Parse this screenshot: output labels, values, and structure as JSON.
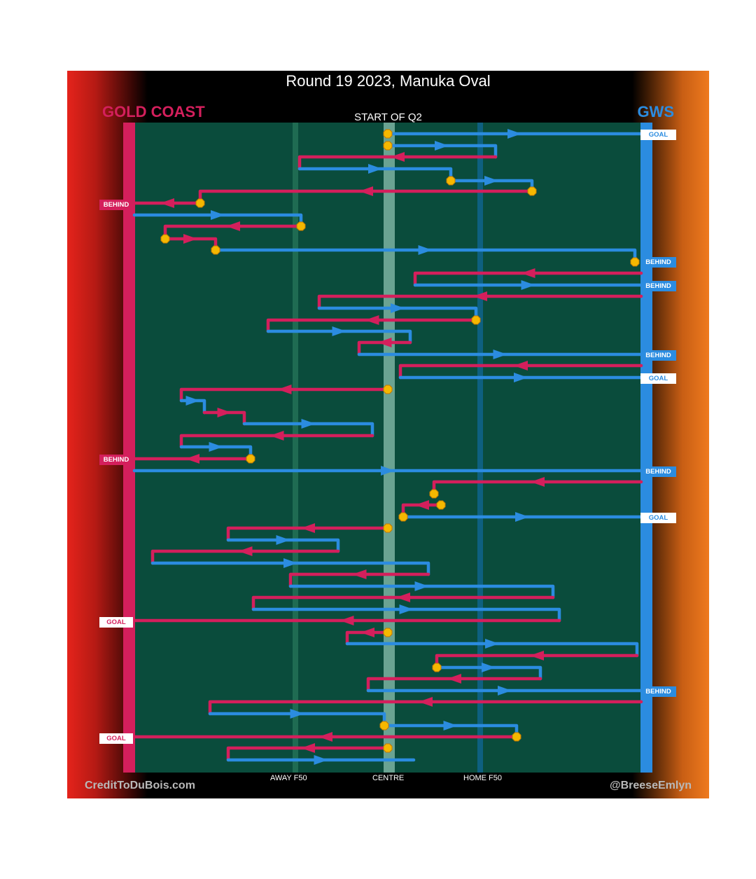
{
  "title": "Round 19 2023, Manuka Oval",
  "quarter": "START OF Q2",
  "teams": {
    "left": "GOLD COAST",
    "right": "GWS"
  },
  "axis_labels": {
    "away": "AWAY F50",
    "centre": "CENTRE",
    "home": "HOME F50"
  },
  "credits": {
    "left": "CreditToDuBois.com",
    "right": "@BreeseEmlyn"
  },
  "colors": {
    "gold_coast": "#d41f5c",
    "gws": "#2b8ce0",
    "field": "#0a4c3c",
    "stoppage_marker": "#f5b800"
  },
  "outcome_labels": [
    "GOAL",
    "BEHIND",
    "BEHIND",
    "BEHIND",
    "BEHIND",
    "GOAL",
    "BEHIND",
    "BEHIND",
    "GOAL",
    "GOAL",
    "BEHIND",
    "GOAL"
  ]
}
